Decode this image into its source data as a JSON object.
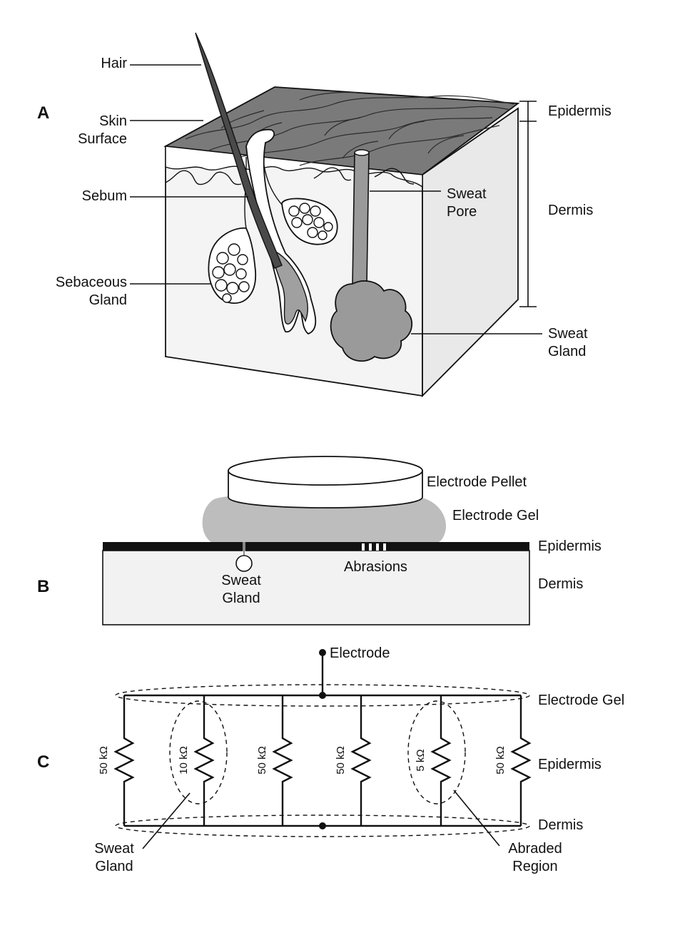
{
  "panels": {
    "a": "A",
    "b": "B",
    "c": "C"
  },
  "panel_a": {
    "hair": "Hair",
    "skin_surface_1": "Skin",
    "skin_surface_2": "Surface",
    "sebum": "Sebum",
    "sebaceous_1": "Sebaceous",
    "sebaceous_2": "Gland",
    "sweat_pore_1": "Sweat",
    "sweat_pore_2": "Pore",
    "epidermis": "Epidermis",
    "dermis": "Dermis",
    "sweat_gland_1": "Sweat",
    "sweat_gland_2": "Gland"
  },
  "panel_b": {
    "electrode_pellet": "Electrode Pellet",
    "electrode_gel": "Electrode Gel",
    "epidermis": "Epidermis",
    "abrasions": "Abrasions",
    "dermis": "Dermis",
    "sweat_gland_1": "Sweat",
    "sweat_gland_2": "Gland"
  },
  "panel_c": {
    "electrode": "Electrode",
    "electrode_gel": "Electrode Gel",
    "epidermis": "Epidermis",
    "dermis": "Dermis",
    "sweat_gland_1": "Sweat",
    "sweat_gland_2": "Gland",
    "abraded_1": "Abraded",
    "abraded_2": "Region",
    "resistors": [
      "50 kΩ",
      "10 kΩ",
      "50 kΩ",
      "50 kΩ",
      "5 kΩ",
      "50 kΩ"
    ]
  },
  "colors": {
    "skin_top": "#7a7a7a",
    "dermis_fill": "#f2f2f2",
    "gland_fill": "#9a9a9a",
    "gel_fill": "#bdbdbd"
  }
}
